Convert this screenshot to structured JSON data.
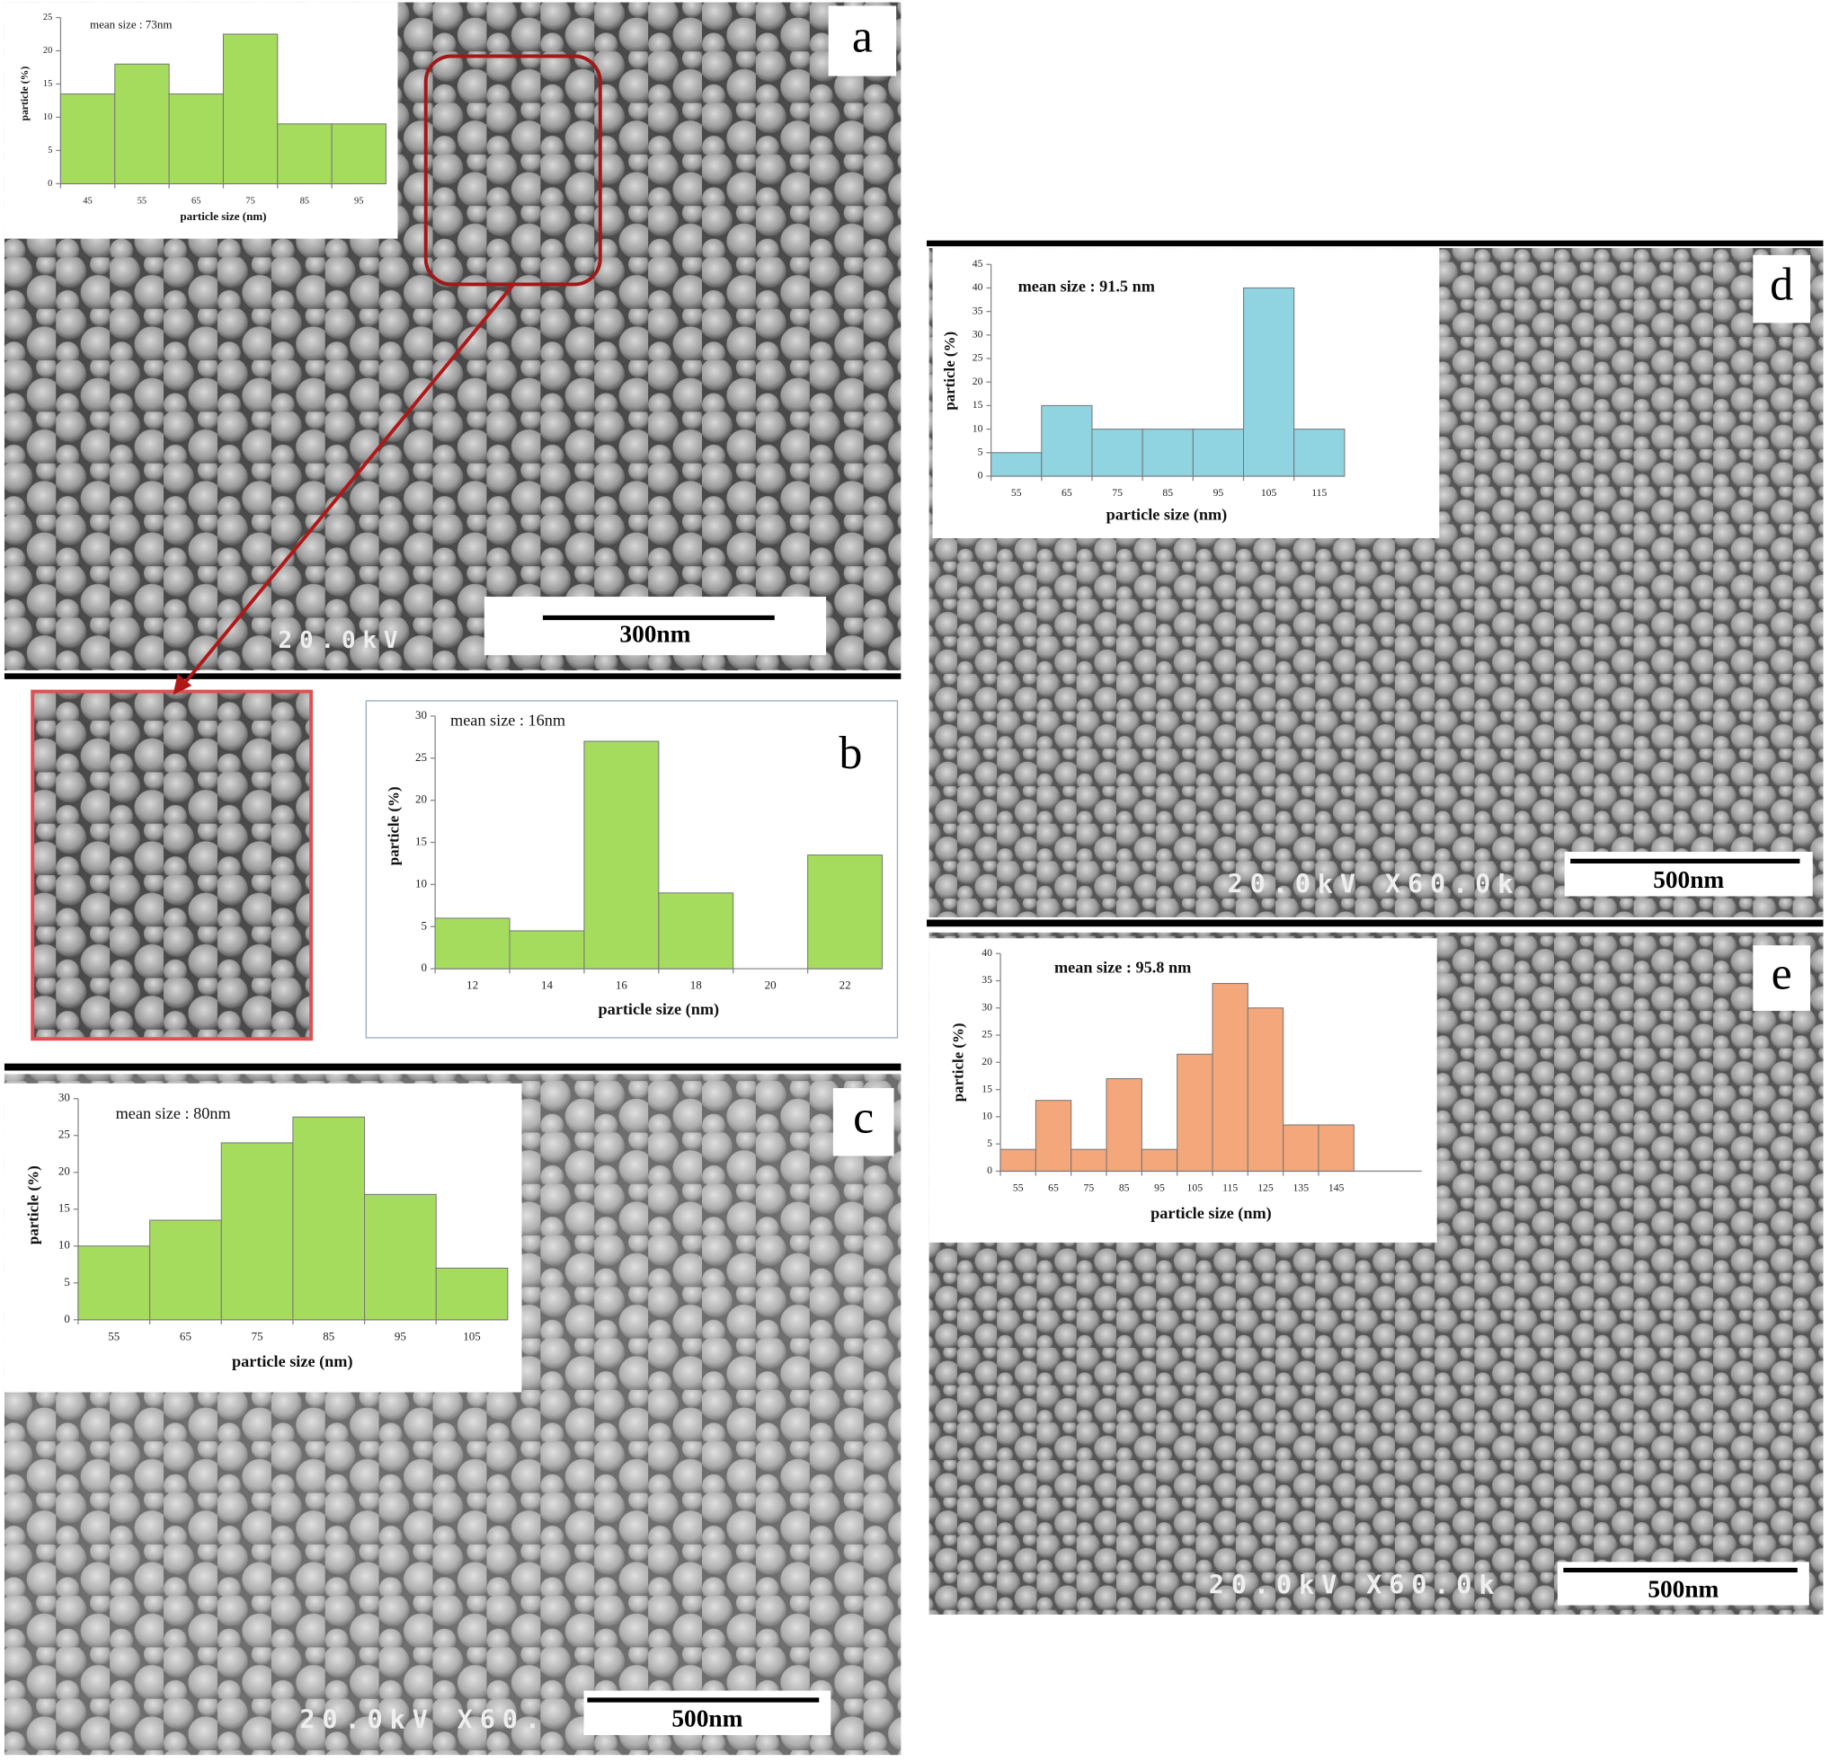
{
  "chart_data": [
    {
      "type": "bar",
      "panel_label": "a",
      "annotation": "mean size : 73nm",
      "x_label": "particle size (nm)",
      "y_label": "particle (%)",
      "categories": [
        "45",
        "55",
        "65",
        "75",
        "85",
        "95"
      ],
      "values": [
        13.5,
        18,
        13.5,
        22.5,
        9,
        9
      ],
      "color": "#a6dc5e",
      "ylim": [
        0,
        25
      ],
      "yticks": [
        0,
        5,
        10,
        15,
        20,
        25
      ],
      "scale_bar": "300nm",
      "voltage_label": "20.0kV"
    },
    {
      "type": "bar",
      "panel_label": "b",
      "annotation": "mean size : 16nm",
      "x_label": "particle size (nm)",
      "y_label": "particle (%)",
      "categories": [
        "12",
        "14",
        "16",
        "18",
        "20",
        "22"
      ],
      "values": [
        6,
        4.5,
        27,
        9,
        0,
        13.5
      ],
      "color": "#a6dc5e",
      "ylim": [
        0,
        30
      ],
      "yticks": [
        0,
        5,
        10,
        15,
        20,
        25,
        30
      ]
    },
    {
      "type": "bar",
      "panel_label": "c",
      "annotation": "mean size : 80nm",
      "x_label": "particle size (nm)",
      "y_label": "particle (%)",
      "categories": [
        "55",
        "65",
        "75",
        "85",
        "95",
        "105"
      ],
      "values": [
        10,
        13.5,
        24,
        27.5,
        17,
        7
      ],
      "color": "#a6dc5e",
      "ylim": [
        0,
        30
      ],
      "yticks": [
        0,
        5,
        10,
        15,
        20,
        25,
        30
      ],
      "scale_bar": "500nm",
      "voltage_label": "20.0kV X60."
    },
    {
      "type": "bar",
      "panel_label": "d",
      "annotation": "mean size : 91.5 nm",
      "x_label": "particle size (nm)",
      "y_label": "particle (%)",
      "categories": [
        "55",
        "65",
        "75",
        "85",
        "95",
        "105",
        "115"
      ],
      "values": [
        5,
        15,
        10,
        10,
        10,
        40,
        10
      ],
      "color": "#90d4e2",
      "ylim": [
        0,
        45
      ],
      "yticks": [
        0,
        5,
        10,
        15,
        20,
        25,
        30,
        35,
        40,
        45
      ],
      "scale_bar": "500nm",
      "voltage_label": "20.0kV X60.0k"
    },
    {
      "type": "bar",
      "panel_label": "e",
      "annotation": "mean size : 95.8 nm",
      "x_label": "particle size (nm)",
      "y_label": "particle (%)",
      "categories": [
        "55",
        "65",
        "75",
        "85",
        "95",
        "105",
        "115",
        "125",
        "135",
        "145"
      ],
      "values": [
        4,
        13,
        4,
        17,
        4,
        21.5,
        34.5,
        30,
        8.5,
        8.5
      ],
      "color": "#f4a77b",
      "ylim": [
        0,
        40
      ],
      "yticks": [
        0,
        5,
        10,
        15,
        20,
        25,
        30,
        35,
        40
      ],
      "scale_bar": "500nm",
      "voltage_label": "20.0kV X60.0k"
    }
  ]
}
